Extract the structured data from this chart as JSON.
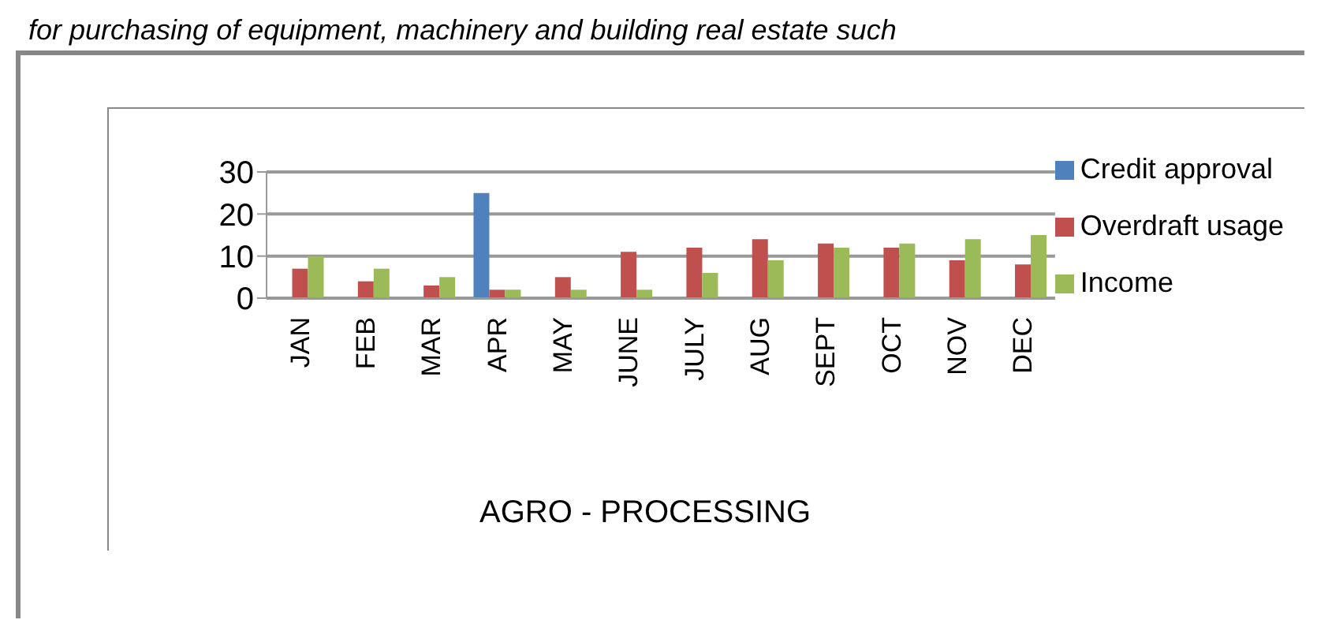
{
  "chart_data": {
    "type": "bar",
    "xlabel": "AGRO - PROCESSING",
    "annotations": [
      "for purchasing of equipment, machinery and building real estate such"
    ],
    "categories": [
      "JAN",
      "FEB",
      "MAR",
      "APR",
      "MAY",
      "JUNE",
      "JULY",
      "AUG",
      "SEPT",
      "OCT",
      "NOV",
      "DEC"
    ],
    "series": [
      {
        "name": "Credit approval",
        "color": "#4f81bd",
        "values": [
          null,
          null,
          null,
          25,
          null,
          null,
          null,
          null,
          null,
          null,
          null,
          null
        ]
      },
      {
        "name": "Overdraft usage",
        "color": "#c0504d",
        "values": [
          7,
          4,
          3,
          2,
          5,
          11,
          12,
          14,
          13,
          12,
          9,
          8
        ]
      },
      {
        "name": "Income",
        "color": "#9bbb59",
        "values": [
          10,
          7,
          5,
          2,
          2,
          2,
          6,
          9,
          12,
          13,
          14,
          15
        ]
      }
    ],
    "ylim": [
      0,
      30
    ],
    "yticks": [
      0,
      10,
      20,
      30
    ],
    "grid": "y",
    "legend": "right"
  }
}
